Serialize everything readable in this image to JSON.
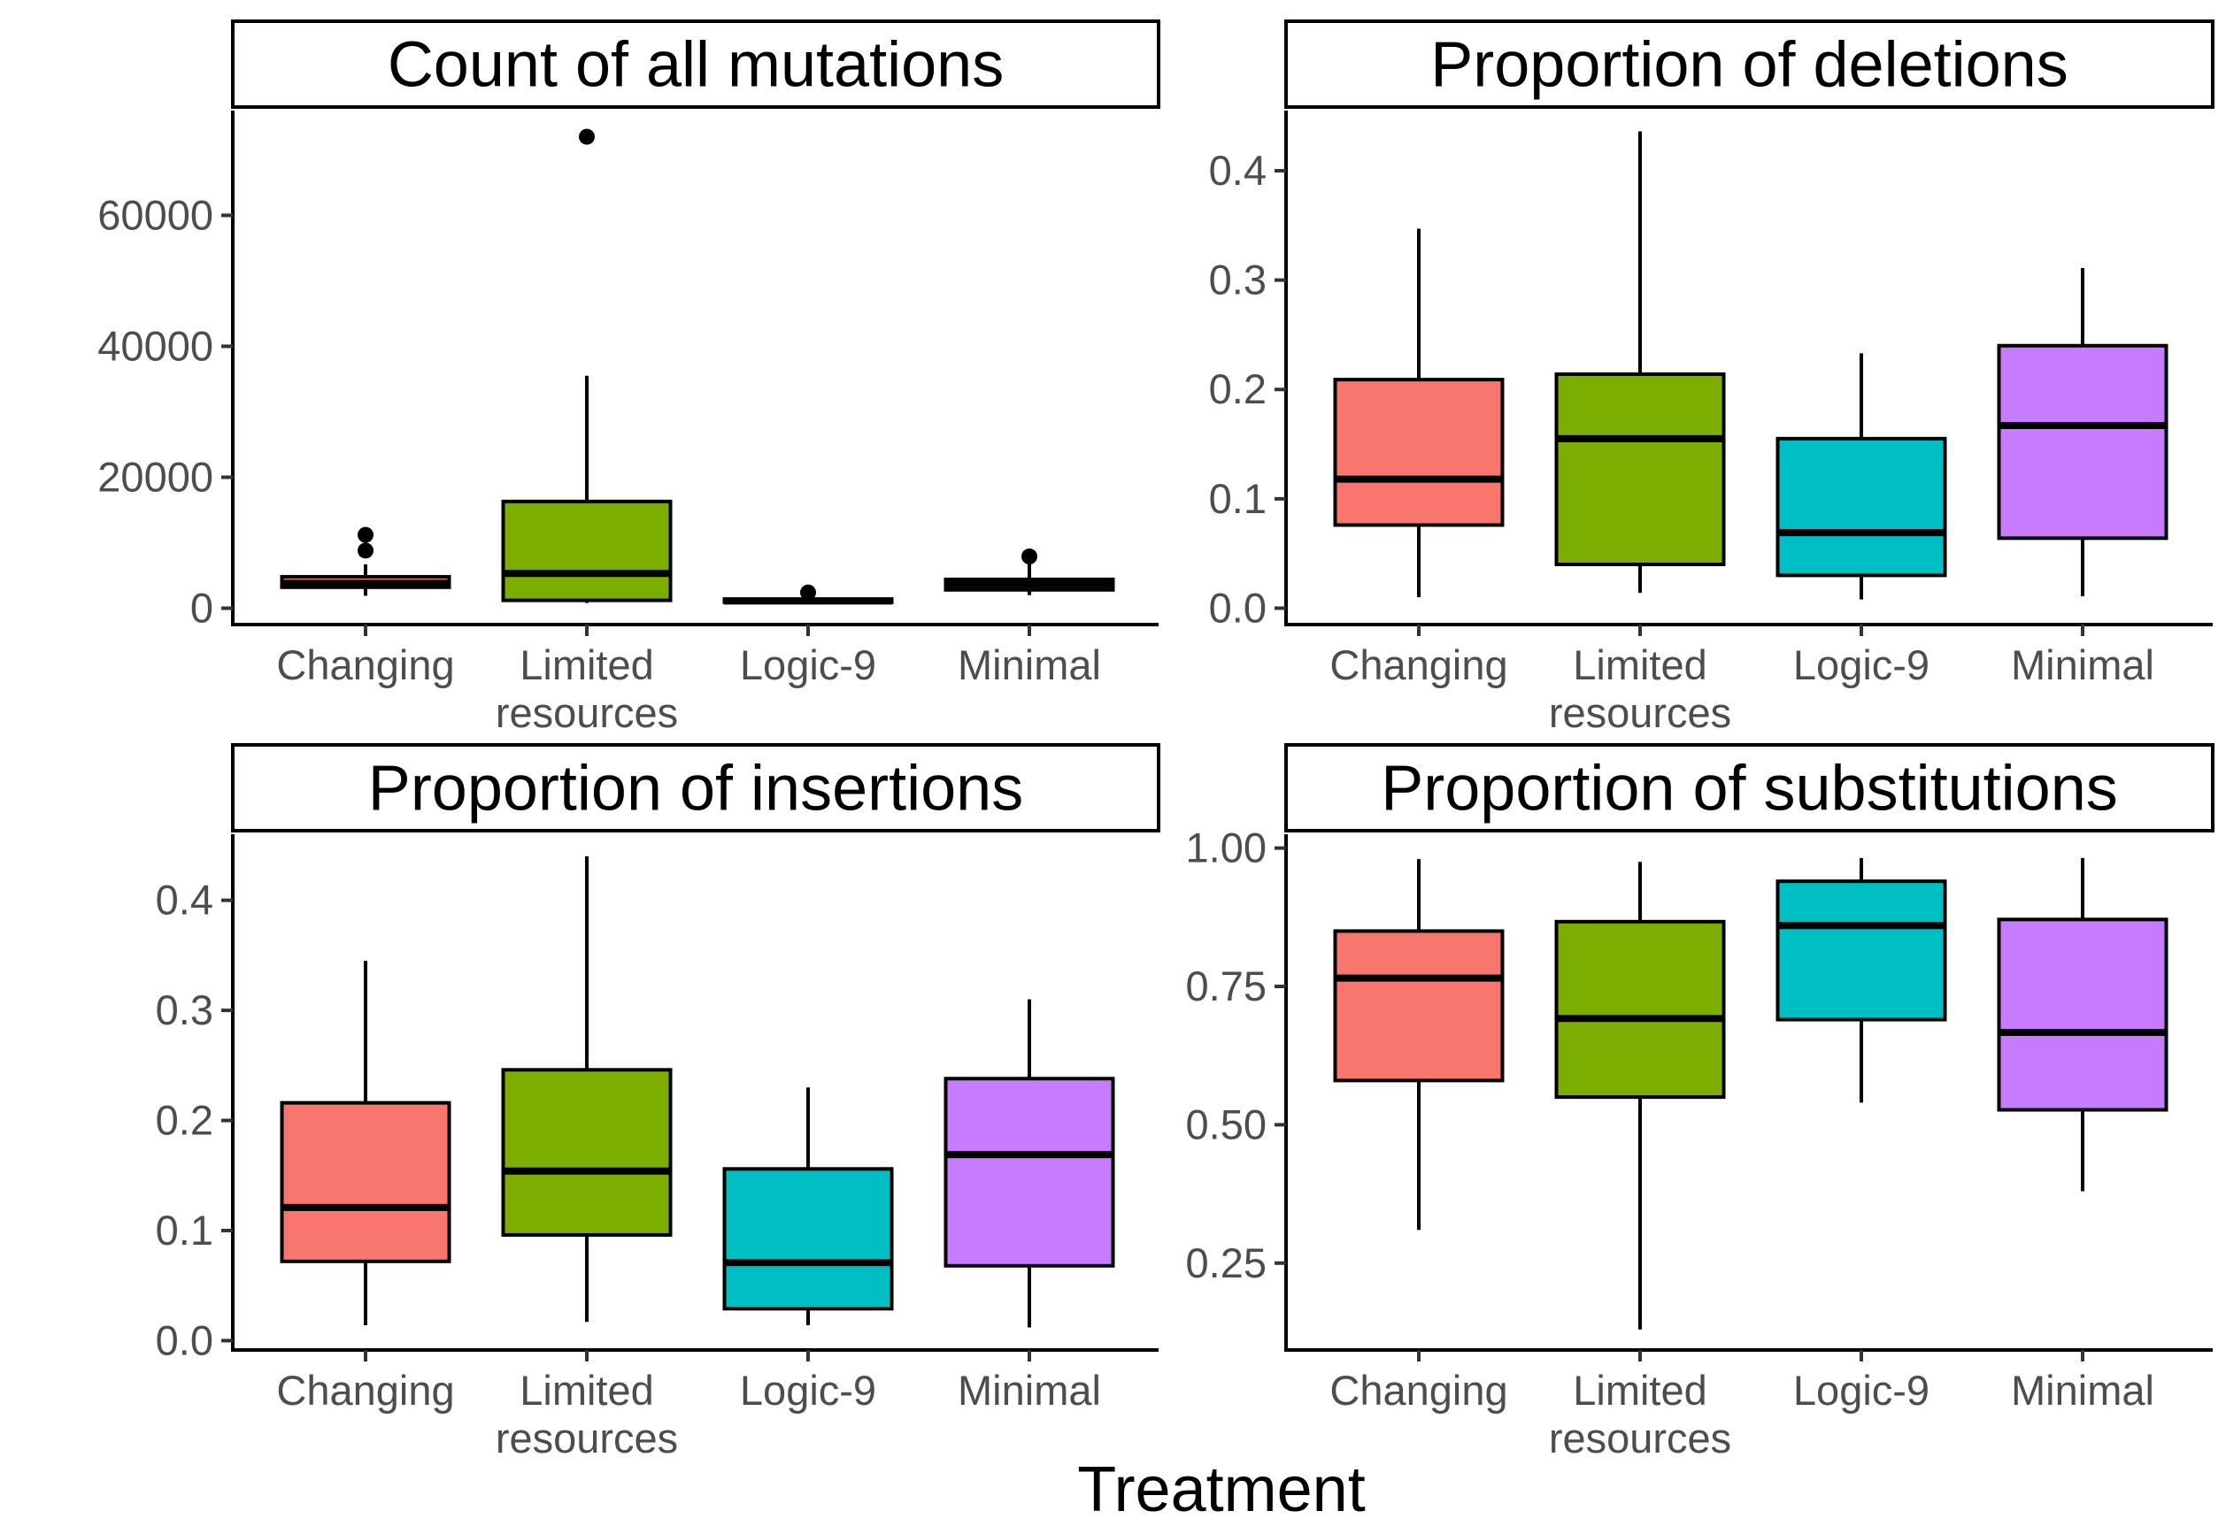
{
  "figure": {
    "xlabel": "Treatment"
  },
  "chart_data": [
    {
      "type": "box",
      "title": "Count of all mutations",
      "categories": [
        "Changing",
        "Limited\nresources",
        "Logic-9",
        "Minimal"
      ],
      "colors": [
        "#F8766D",
        "#7CAE00",
        "#00BFC4",
        "#C77CFF"
      ],
      "ylim": [
        -2500,
        76000
      ],
      "yticks": [
        0,
        20000,
        40000,
        60000
      ],
      "ytick_labels": [
        "0",
        "20000",
        "40000",
        "60000"
      ],
      "boxes": [
        {
          "min": 1900,
          "q1": 3200,
          "median": 3800,
          "q3": 4800,
          "max": 6700,
          "outliers": [
            8800,
            11200
          ]
        },
        {
          "min": 800,
          "q1": 1200,
          "median": 5300,
          "q3": 16300,
          "max": 35500,
          "outliers": [
            72000
          ]
        },
        {
          "min": 700,
          "q1": 900,
          "median": 1100,
          "q3": 1400,
          "max": 1800,
          "outliers": [
            2400
          ]
        },
        {
          "min": 2000,
          "q1": 2800,
          "median": 3600,
          "q3": 4400,
          "max": 6700,
          "outliers": [
            7900
          ]
        }
      ]
    },
    {
      "type": "box",
      "title": "Proportion of deletions",
      "categories": [
        "Changing",
        "Limited\nresources",
        "Logic-9",
        "Minimal"
      ],
      "colors": [
        "#F8766D",
        "#7CAE00",
        "#00BFC4",
        "#C77CFF"
      ],
      "ylim": [
        -0.015,
        0.455
      ],
      "yticks": [
        0,
        0.1,
        0.2,
        0.3,
        0.4
      ],
      "ytick_labels": [
        "0.0",
        "0.1",
        "0.2",
        "0.3",
        "0.4"
      ],
      "boxes": [
        {
          "min": 0.01,
          "q1": 0.076,
          "median": 0.118,
          "q3": 0.209,
          "max": 0.347,
          "outliers": []
        },
        {
          "min": 0.014,
          "q1": 0.04,
          "median": 0.155,
          "q3": 0.214,
          "max": 0.436,
          "outliers": []
        },
        {
          "min": 0.008,
          "q1": 0.03,
          "median": 0.069,
          "q3": 0.155,
          "max": 0.233,
          "outliers": []
        },
        {
          "min": 0.011,
          "q1": 0.064,
          "median": 0.167,
          "q3": 0.24,
          "max": 0.311,
          "outliers": []
        }
      ]
    },
    {
      "type": "box",
      "title": "Proportion of insertions",
      "categories": [
        "Changing",
        "Limited\nresources",
        "Logic-9",
        "Minimal"
      ],
      "colors": [
        "#F8766D",
        "#7CAE00",
        "#00BFC4",
        "#C77CFF"
      ],
      "ylim": [
        -0.0085,
        0.46
      ],
      "yticks": [
        0,
        0.1,
        0.2,
        0.3,
        0.4
      ],
      "ytick_labels": [
        "0.0",
        "0.1",
        "0.2",
        "0.3",
        "0.4"
      ],
      "boxes": [
        {
          "min": 0.014,
          "q1": 0.072,
          "median": 0.121,
          "q3": 0.216,
          "max": 0.345,
          "outliers": []
        },
        {
          "min": 0.017,
          "q1": 0.096,
          "median": 0.154,
          "q3": 0.246,
          "max": 0.44,
          "outliers": []
        },
        {
          "min": 0.014,
          "q1": 0.029,
          "median": 0.071,
          "q3": 0.156,
          "max": 0.23,
          "outliers": []
        },
        {
          "min": 0.012,
          "q1": 0.068,
          "median": 0.169,
          "q3": 0.238,
          "max": 0.31,
          "outliers": []
        }
      ]
    },
    {
      "type": "box",
      "title": "Proportion of substitutions",
      "categories": [
        "Changing",
        "Limited\nresources",
        "Logic-9",
        "Minimal"
      ],
      "colors": [
        "#F8766D",
        "#7CAE00",
        "#00BFC4",
        "#C77CFF"
      ],
      "ylim": [
        0.093,
        1.025
      ],
      "yticks": [
        0.25,
        0.5,
        0.75,
        1.0
      ],
      "ytick_labels": [
        "0.25",
        "0.50",
        "0.75",
        "1.00"
      ],
      "boxes": [
        {
          "min": 0.31,
          "q1": 0.58,
          "median": 0.765,
          "q3": 0.85,
          "max": 0.98,
          "outliers": []
        },
        {
          "min": 0.13,
          "q1": 0.55,
          "median": 0.692,
          "q3": 0.867,
          "max": 0.975,
          "outliers": []
        },
        {
          "min": 0.54,
          "q1": 0.69,
          "median": 0.86,
          "q3": 0.94,
          "max": 0.982,
          "outliers": []
        },
        {
          "min": 0.38,
          "q1": 0.527,
          "median": 0.667,
          "q3": 0.871,
          "max": 0.982,
          "outliers": []
        }
      ]
    }
  ]
}
